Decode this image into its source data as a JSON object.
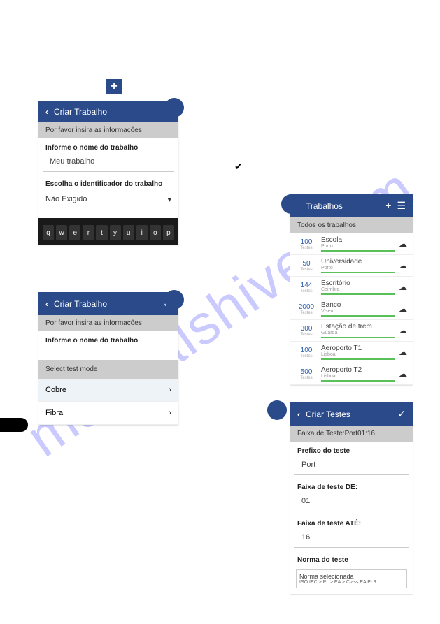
{
  "watermark": "manualshive.com",
  "plus_label": "+",
  "check_label": "✔",
  "panel1": {
    "title": "Criar Trabalho",
    "sub": "Por favor insira as informações",
    "name_label": "Informe o nome do trabalho",
    "name_value": "Meu trabalho",
    "id_label": "Escolha o identificador do trabalho",
    "id_value": "Não Exigido",
    "keys": [
      "q",
      "w",
      "e",
      "r",
      "t",
      "y",
      "u",
      "i",
      "o",
      "p"
    ]
  },
  "panel2": {
    "title": "Criar Trabalho",
    "sub": "Por favor insira as informações",
    "name_label": "Informe o nome do trabalho",
    "mode_label": "Select test mode",
    "opt1": "Cobre",
    "opt2": "Fibra"
  },
  "panel3": {
    "title": "Trabalhos",
    "sub": "Todos os trabalhos",
    "jobs": [
      {
        "count": "100",
        "lbl": "Testes",
        "name": "Escola",
        "loc": "Porto"
      },
      {
        "count": "50",
        "lbl": "Testes",
        "name": "Universidade",
        "loc": "Porto"
      },
      {
        "count": "144",
        "lbl": "Testes",
        "name": "Escritório",
        "loc": "Coimbra"
      },
      {
        "count": "2000",
        "lbl": "Testes",
        "name": "Banco",
        "loc": "Viseu"
      },
      {
        "count": "300",
        "lbl": "Testes",
        "name": "Estação de trem",
        "loc": "Guarda"
      },
      {
        "count": "100",
        "lbl": "Testes",
        "name": "Aeroporto T1",
        "loc": "Lisboa"
      },
      {
        "count": "500",
        "lbl": "Testes",
        "name": "Aeroporto T2",
        "loc": "Lisboa"
      }
    ]
  },
  "panel4": {
    "title": "Criar Testes",
    "sub": "Faixa de Teste:Port01:16",
    "prefix_label": "Prefixo do teste",
    "prefix_value": "Port",
    "from_label": "Faixa de teste DE:",
    "from_value": "01",
    "to_label": "Faixa de teste ATÉ:",
    "to_value": "16",
    "norm_label": "Norma do teste",
    "norm_sel": "Norma selecionada",
    "norm_val": "ISO IEC > PL > EA > Class EA PL3"
  }
}
